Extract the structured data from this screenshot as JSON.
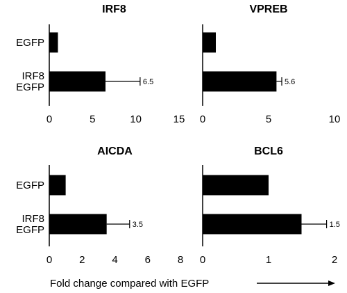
{
  "chart_data": [
    {
      "type": "bar",
      "orientation": "horizontal",
      "title": "IRF8",
      "categories": [
        "EGFP",
        "IRF8\nEGFP"
      ],
      "values": [
        1,
        6.5
      ],
      "errors": [
        null,
        4.0
      ],
      "data_labels": [
        null,
        "6.5"
      ],
      "xlim": [
        0,
        15
      ],
      "xticks": [
        0,
        5,
        10,
        15
      ]
    },
    {
      "type": "bar",
      "orientation": "horizontal",
      "title": "VPREB",
      "categories": [
        "EGFP",
        "IRF8\nEGFP"
      ],
      "values": [
        1,
        5.6
      ],
      "errors": [
        null,
        0.4
      ],
      "data_labels": [
        null,
        "5.6"
      ],
      "xlim": [
        0,
        10
      ],
      "xticks": [
        0,
        5,
        10
      ]
    },
    {
      "type": "bar",
      "orientation": "horizontal",
      "title": "AICDA",
      "categories": [
        "EGFP",
        "IRF8\nEGFP"
      ],
      "values": [
        1,
        3.5
      ],
      "errors": [
        null,
        1.4
      ],
      "data_labels": [
        null,
        "3.5"
      ],
      "xlim": [
        0,
        8
      ],
      "xticks": [
        0,
        2,
        4,
        6,
        8
      ]
    },
    {
      "type": "bar",
      "orientation": "horizontal",
      "title": "BCL6",
      "categories": [
        "EGFP",
        "IRF8\nEGFP"
      ],
      "values": [
        1,
        1.5
      ],
      "errors": [
        null,
        0.38
      ],
      "data_labels": [
        null,
        "1.5"
      ],
      "xlim": [
        0,
        2
      ],
      "xticks": [
        0,
        1,
        2
      ]
    }
  ],
  "xlabel": "Fold change compared with EGFP",
  "colors": {
    "bar": "#000000",
    "axis": "#000000"
  }
}
